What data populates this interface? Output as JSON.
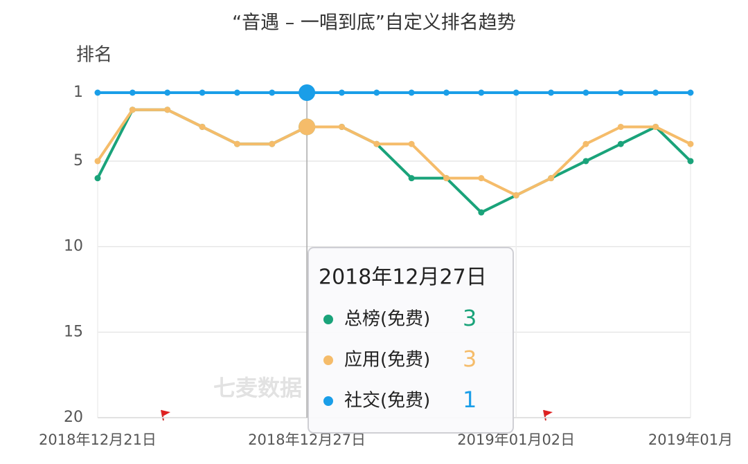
{
  "chart_data": {
    "type": "line",
    "title": "“音遇 – 一唱到底”自定义排名趋势",
    "y_label": "排名",
    "watermark": "七麦数据",
    "categories": [
      "2018年12月21日",
      null,
      null,
      null,
      null,
      null,
      "2018年12月27日",
      null,
      null,
      null,
      null,
      null,
      "2019年01月02日",
      null,
      null,
      null,
      null,
      "2019年01月"
    ],
    "series": [
      {
        "name": "总榜(免费)",
        "color": "#1aa37a",
        "values": [
          6,
          2,
          2,
          3,
          4,
          4,
          3,
          3,
          4,
          6,
          6,
          8,
          7,
          6,
          5,
          4,
          3,
          5
        ]
      },
      {
        "name": "应用(免费)",
        "color": "#f5bc6a",
        "values": [
          5,
          2,
          2,
          3,
          4,
          4,
          3,
          3,
          4,
          4,
          6,
          6,
          7,
          6,
          4,
          3,
          3,
          4
        ]
      },
      {
        "name": "社交(免费)",
        "color": "#1a9ee8",
        "values": [
          1,
          1,
          1,
          1,
          1,
          1,
          1,
          1,
          1,
          1,
          1,
          1,
          1,
          1,
          1,
          1,
          1,
          1
        ]
      }
    ],
    "ylim": [
      1,
      20
    ],
    "yticks": [
      1,
      5,
      10,
      15,
      20
    ],
    "y_inverted": true,
    "grid": true,
    "tooltip_index": 6,
    "tooltip_title": "2018年12月27日"
  }
}
